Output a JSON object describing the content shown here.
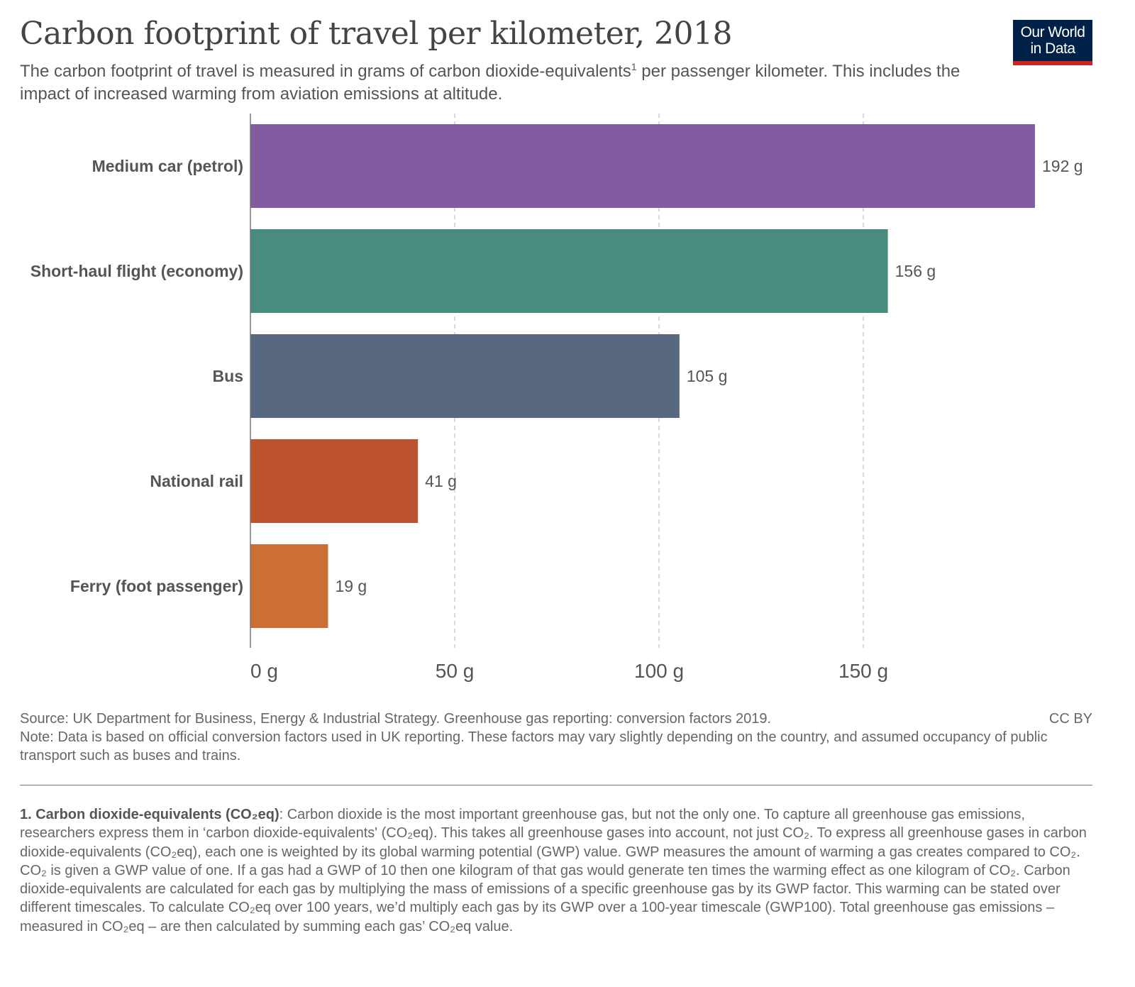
{
  "header": {
    "title": "Carbon footprint of travel per kilometer, 2018",
    "subtitle_part1": "The carbon footprint of travel is measured in grams of carbon dioxide-equivalents",
    "subtitle_sup": "1",
    "subtitle_part2": " per passenger kilometer. This includes the impact of increased warming from aviation emissions at altitude."
  },
  "logo": {
    "line1": "Our World",
    "line2": "in Data",
    "bg": "#002147",
    "accent": "#ce261e"
  },
  "chart_data": {
    "type": "bar",
    "orientation": "horizontal",
    "categories": [
      "Medium car (petrol)",
      "Short-haul flight (economy)",
      "Bus",
      "National rail",
      "Ferry (foot passenger)"
    ],
    "values": [
      192,
      156,
      105,
      41,
      19
    ],
    "value_labels": [
      "192 g",
      "156 g",
      "105 g",
      "41 g",
      "19 g"
    ],
    "colors": [
      "#835ba0",
      "#4a8b7f",
      "#586880",
      "#bd532e",
      "#cc6f37"
    ],
    "xlim": [
      0,
      192
    ],
    "xticks": [
      0,
      50,
      100,
      150
    ],
    "xtick_labels": [
      "0 g",
      "50 g",
      "100 g",
      "150 g"
    ],
    "grid": "vertical-dashed"
  },
  "footer": {
    "source": "Source: UK Department for Business, Energy & Industrial Strategy. Greenhouse gas reporting: conversion factors 2019.",
    "license": "CC BY",
    "note": "Note: Data is based on official conversion factors used in UK reporting. These factors may vary slightly depending on the country, and assumed occupancy of public transport such as buses and trains.",
    "footnote_title": "1. Carbon dioxide-equivalents (CO₂eq)",
    "footnote_body": ": Carbon dioxide is the most important greenhouse gas, but not the only one. To capture all greenhouse gas emissions, researchers express them in ‘carbon dioxide-equivalents' (CO₂eq). This takes all greenhouse gases into account, not just CO₂. To express all greenhouse gases in carbon dioxide-equivalents (CO₂eq), each one is weighted by its global warming potential (GWP) value. GWP measures the amount of warming a gas creates compared to CO₂. CO₂ is given a GWP value of one. If a gas had a GWP of 10 then one kilogram of that gas would generate ten times the warming effect as one kilogram of CO₂. Carbon dioxide-equivalents are calculated for each gas by multiplying the mass of emissions of a specific greenhouse gas by its GWP factor. This warming can be stated over different timescales. To calculate CO₂eq over 100 years, we’d multiply each gas by its GWP over a 100-year timescale (GWP100). Total greenhouse gas emissions – measured in CO₂eq – are then calculated by summing each gas’ CO₂eq value."
  }
}
